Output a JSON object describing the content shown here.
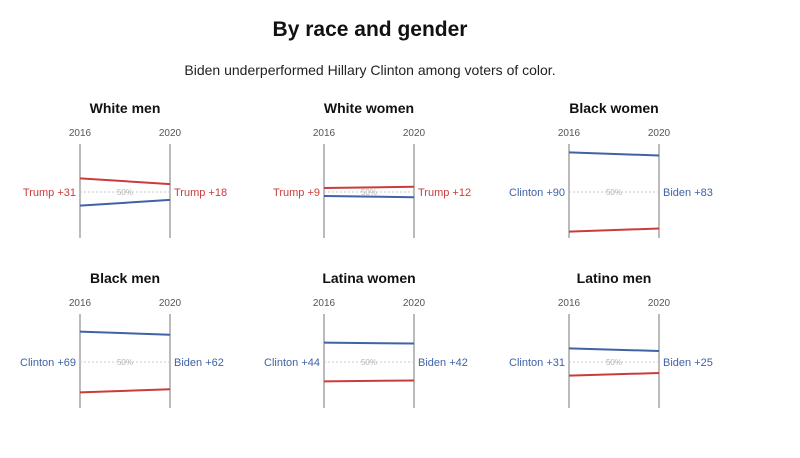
{
  "page": {
    "title": "By race and gender",
    "subtitle": "Biden underperformed Hillary Clinton among voters of color."
  },
  "colors": {
    "dem": "#3f62a8",
    "rep": "#cc3b3b",
    "axis": "#777777",
    "midline": "#c8c8c8",
    "midlabel": "#b4b4b4",
    "years": "#555555"
  },
  "chart_data": [
    {
      "type": "slope",
      "title": "White men",
      "x": [
        "2016",
        "2020"
      ],
      "midline_label": "50%",
      "series": [
        {
          "party": "rep",
          "values": [
            65.5,
            59
          ]
        },
        {
          "party": "dem",
          "values": [
            34.5,
            41
          ]
        }
      ],
      "labels": [
        "Trump +31",
        "Trump +18"
      ],
      "label_colors": [
        "rep",
        "rep"
      ]
    },
    {
      "type": "slope",
      "title": "White women",
      "x": [
        "2016",
        "2020"
      ],
      "midline_label": "50%",
      "series": [
        {
          "party": "rep",
          "values": [
            54.5,
            56
          ]
        },
        {
          "party": "dem",
          "values": [
            45.5,
            44
          ]
        }
      ],
      "labels": [
        "Trump +9",
        "Trump +12"
      ],
      "label_colors": [
        "rep",
        "rep"
      ]
    },
    {
      "type": "slope",
      "title": "Black women",
      "x": [
        "2016",
        "2020"
      ],
      "midline_label": "50%",
      "series": [
        {
          "party": "dem",
          "values": [
            95,
            91.5
          ]
        },
        {
          "party": "rep",
          "values": [
            5,
            8.5
          ]
        }
      ],
      "labels": [
        "Clinton +90",
        "Biden +83"
      ],
      "label_colors": [
        "dem",
        "dem"
      ]
    },
    {
      "type": "slope",
      "title": "Black men",
      "x": [
        "2016",
        "2020"
      ],
      "midline_label": "50%",
      "series": [
        {
          "party": "dem",
          "values": [
            84.5,
            81
          ]
        },
        {
          "party": "rep",
          "values": [
            15.5,
            19
          ]
        }
      ],
      "labels": [
        "Clinton +69",
        "Biden +62"
      ],
      "label_colors": [
        "dem",
        "dem"
      ]
    },
    {
      "type": "slope",
      "title": "Latina women",
      "x": [
        "2016",
        "2020"
      ],
      "midline_label": "50%",
      "series": [
        {
          "party": "dem",
          "values": [
            72,
            71
          ]
        },
        {
          "party": "rep",
          "values": [
            28,
            29
          ]
        }
      ],
      "labels": [
        "Clinton +44",
        "Biden +42"
      ],
      "label_colors": [
        "dem",
        "dem"
      ]
    },
    {
      "type": "slope",
      "title": "Latino men",
      "x": [
        "2016",
        "2020"
      ],
      "midline_label": "50%",
      "series": [
        {
          "party": "dem",
          "values": [
            65.5,
            62.5
          ]
        },
        {
          "party": "rep",
          "values": [
            34.5,
            37.5
          ]
        }
      ],
      "labels": [
        "Clinton +31",
        "Biden +25"
      ],
      "label_colors": [
        "dem",
        "dem"
      ]
    }
  ]
}
